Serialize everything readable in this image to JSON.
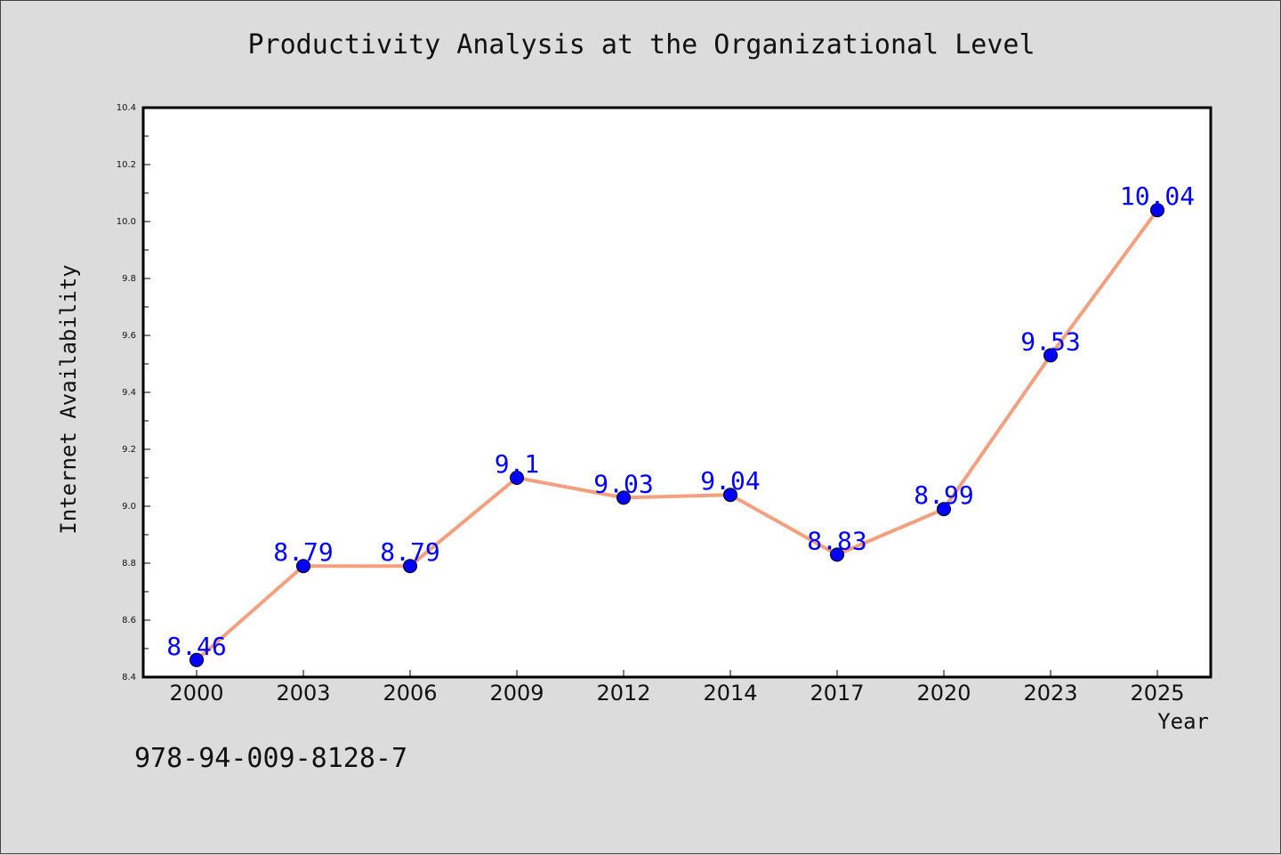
{
  "chart_data": {
    "type": "line",
    "title": "Productivity Analysis at the Organizational Level",
    "xlabel": "Year",
    "ylabel": "Internet Availability",
    "categories": [
      "2000",
      "2003",
      "2006",
      "2009",
      "2012",
      "2014",
      "2017",
      "2020",
      "2023",
      "2025"
    ],
    "values": [
      8.46,
      8.79,
      8.79,
      9.1,
      9.03,
      9.04,
      8.83,
      8.99,
      9.53,
      10.04
    ],
    "data_labels": [
      "8.46",
      "8.79",
      "8.79",
      "9.1",
      "9.03",
      "9.04",
      "8.83",
      "8.99",
      "9.53",
      "10.04"
    ],
    "ylim": [
      8.4,
      10.4
    ],
    "yticks": [
      "8.4",
      "8.6",
      "8.8",
      "9.0",
      "9.2",
      "9.4",
      "9.6",
      "9.8",
      "10.0",
      "10.2",
      "10.4"
    ],
    "grid": false,
    "legend": false,
    "line_color": "#f4a07e",
    "marker_color": "#0000ff",
    "label_color": "#0000ff"
  },
  "footer_text": "978-94-009-8128-7"
}
